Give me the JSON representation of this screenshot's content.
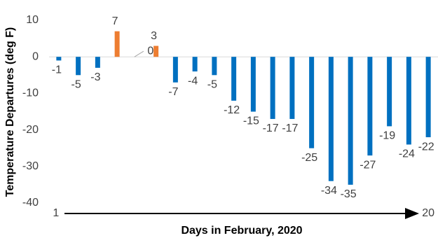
{
  "chart_data": {
    "type": "bar",
    "categories": [
      1,
      null,
      null,
      null,
      null,
      null,
      null,
      null,
      null,
      null,
      null,
      null,
      null,
      null,
      null,
      null,
      null,
      null,
      null,
      20
    ],
    "values": [
      -1,
      -5,
      -3,
      7,
      0,
      3,
      -7,
      -4,
      -5,
      -12,
      -15,
      -17,
      -17,
      -25,
      -34,
      -35,
      -27,
      -19,
      -24,
      -22
    ],
    "colors": [
      "#0070c0",
      "#0070c0",
      "#0070c0",
      "#ed7d31",
      "#ed7d31",
      "#ed7d31",
      "#0070c0",
      "#0070c0",
      "#0070c0",
      "#0070c0",
      "#0070c0",
      "#0070c0",
      "#0070c0",
      "#0070c0",
      "#0070c0",
      "#0070c0",
      "#0070c0",
      "#0070c0",
      "#0070c0",
      "#0070c0"
    ],
    "ylim": [
      -40,
      10
    ],
    "yticks": [
      -40,
      -30,
      -20,
      -10,
      0,
      10
    ],
    "x_label": "Days in February, 2020",
    "y_label": "Temperature Departures (deg F)",
    "grid": false
  }
}
